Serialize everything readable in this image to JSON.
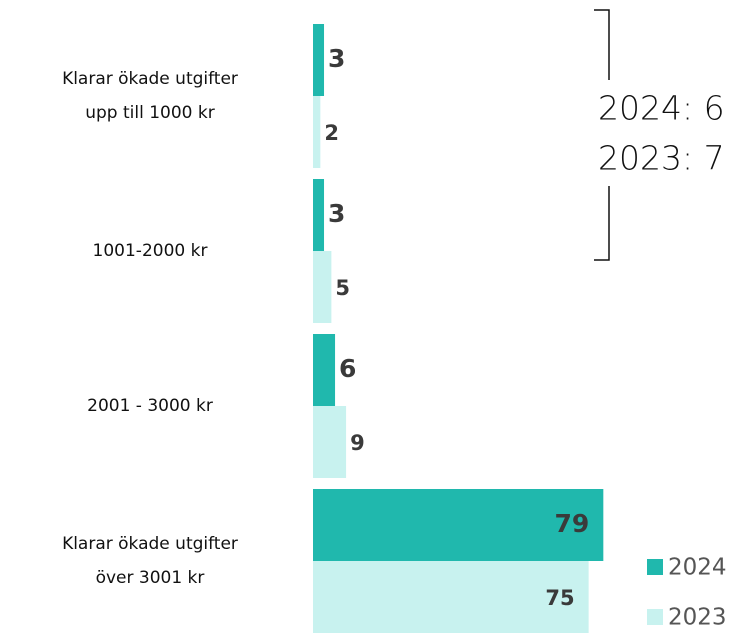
{
  "chart_data": {
    "type": "bar",
    "categories": [
      "Klarar ökade utgifter\nupp till 1000 kr",
      "1001-2000 kr",
      "2001 - 3000 kr",
      "Klarar ökade utgifter\növer 3001 kr"
    ],
    "series": [
      {
        "name": "2024",
        "color": "#20b8ad",
        "values": [
          3,
          3,
          6,
          79
        ]
      },
      {
        "name": "2023",
        "color": "#c8f2ef",
        "values": [
          2,
          5,
          9,
          75
        ]
      }
    ],
    "xlim": [
      0,
      80
    ],
    "annotation": [
      "2024: 6",
      "2023: 7"
    ],
    "legend": "lower right"
  }
}
